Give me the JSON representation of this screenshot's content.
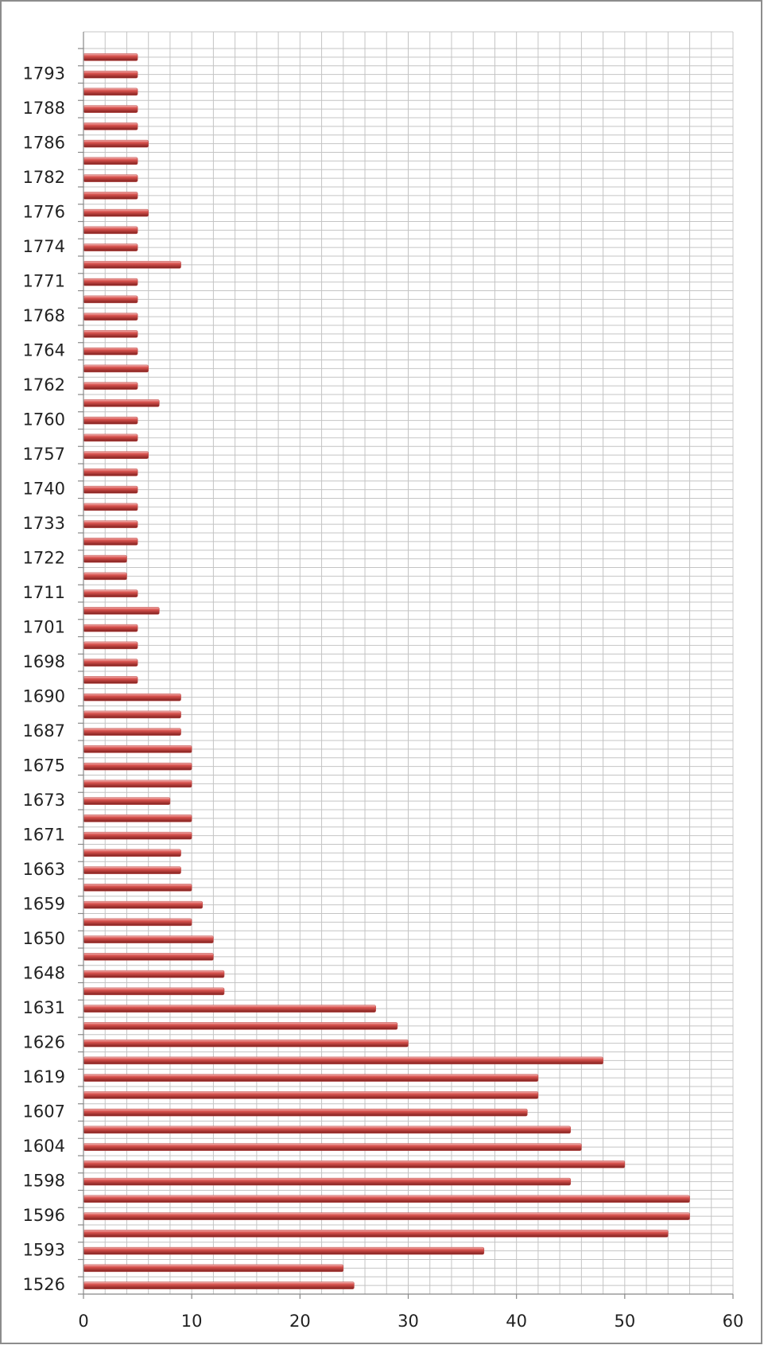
{
  "chart_data": {
    "type": "bar",
    "orientation": "horizontal",
    "categories": [
      null,
      "1793",
      null,
      "1788",
      null,
      "1786",
      null,
      "1782",
      null,
      "1776",
      null,
      "1774",
      null,
      "1771",
      null,
      "1768",
      null,
      "1764",
      null,
      "1762",
      null,
      "1760",
      null,
      "1757",
      null,
      "1740",
      null,
      "1733",
      null,
      "1722",
      null,
      "1711",
      null,
      "1701",
      null,
      "1698",
      null,
      "1690",
      null,
      "1687",
      null,
      "1675",
      null,
      "1673",
      null,
      "1671",
      null,
      "1663",
      null,
      "1659",
      null,
      "1650",
      null,
      "1648",
      null,
      "1631",
      null,
      "1626",
      null,
      "1619",
      null,
      "1607",
      null,
      "1604",
      null,
      "1598",
      null,
      "1596",
      null,
      "1593",
      null,
      "1526"
    ],
    "values": [
      5,
      5,
      5,
      5,
      5,
      6,
      5,
      5,
      5,
      6,
      5,
      5,
      9,
      5,
      5,
      5,
      5,
      5,
      6,
      5,
      7,
      5,
      5,
      6,
      5,
      5,
      5,
      5,
      5,
      4,
      4,
      5,
      7,
      5,
      5,
      5,
      5,
      9,
      9,
      9,
      10,
      10,
      10,
      8,
      10,
      10,
      9,
      9,
      10,
      11,
      10,
      12,
      12,
      13,
      13,
      27,
      29,
      30,
      48,
      42,
      42,
      41,
      45,
      46,
      50,
      45,
      56,
      56,
      54,
      37,
      24,
      25
    ],
    "color": "#c0504d",
    "xlim": [
      0,
      60
    ],
    "xticks": [
      0,
      10,
      20,
      30,
      40,
      50,
      60
    ],
    "xminorticks": [
      0,
      2,
      4,
      6,
      8,
      10,
      12,
      14,
      16,
      18,
      20,
      22,
      24,
      26,
      28,
      30,
      32,
      34,
      36,
      38,
      40,
      42,
      44,
      46,
      48,
      50,
      52,
      54,
      56,
      58,
      60
    ],
    "grid": true
  }
}
